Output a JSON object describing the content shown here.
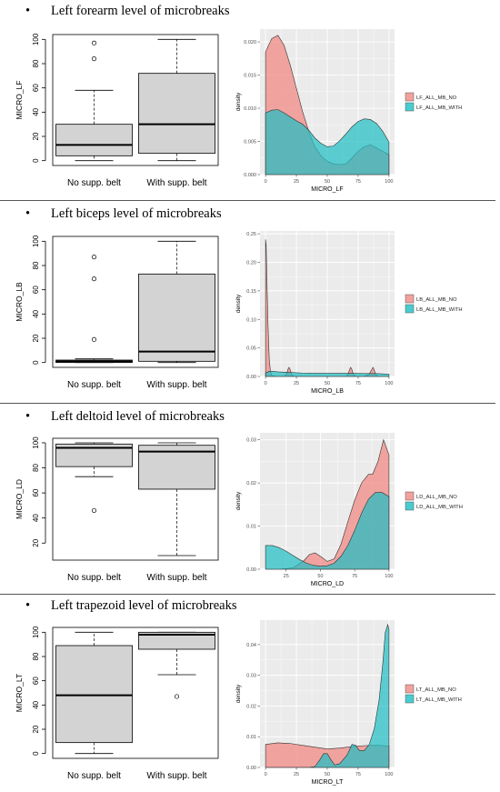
{
  "panels": [
    {
      "heading": "Left forearm level of microbreaks",
      "chart_data": [
        {
          "type": "box",
          "ylabel": "MICRO_LF",
          "categories": [
            "No supp. belt",
            "With supp. belt"
          ],
          "ylim": [
            0,
            100
          ],
          "yticks": [
            0,
            20,
            40,
            60,
            80,
            100
          ],
          "boxes": [
            {
              "min": 0,
              "q1": 4,
              "median": 13,
              "q3": 30,
              "max": 58,
              "outliers": [
                84,
                97
              ]
            },
            {
              "min": 0,
              "q1": 6,
              "median": 30,
              "q3": 72,
              "max": 100,
              "outliers": []
            }
          ]
        },
        {
          "type": "area",
          "xlabel": "MICRO_LF",
          "ylabel": "density",
          "xlim": [
            0,
            100
          ],
          "ylim": [
            0,
            0.0215
          ],
          "xticks": [
            0,
            25,
            50,
            75,
            100
          ],
          "yticks": [
            0.0,
            0.005,
            0.01,
            0.015,
            0.02
          ],
          "legend_title": "",
          "series": [
            {
              "name": "LF_ALL_MB_NO",
              "x": [
                0,
                5,
                10,
                15,
                20,
                25,
                30,
                35,
                40,
                45,
                50,
                55,
                60,
                65,
                70,
                75,
                80,
                85,
                90,
                95,
                100
              ],
              "y": [
                0.0185,
                0.0205,
                0.021,
                0.0195,
                0.0165,
                0.013,
                0.0095,
                0.0065,
                0.0042,
                0.0028,
                0.002,
                0.0016,
                0.0015,
                0.0016,
                0.0025,
                0.0035,
                0.0042,
                0.0045,
                0.004,
                0.0035,
                0.003
              ]
            },
            {
              "name": "LF_ALL_MB_WITH",
              "x": [
                0,
                5,
                10,
                15,
                20,
                25,
                30,
                35,
                40,
                45,
                50,
                55,
                60,
                65,
                70,
                75,
                80,
                85,
                90,
                95,
                100
              ],
              "y": [
                0.0093,
                0.0097,
                0.0098,
                0.0093,
                0.0087,
                0.0081,
                0.0076,
                0.0067,
                0.0055,
                0.0047,
                0.0042,
                0.0043,
                0.0051,
                0.0061,
                0.0072,
                0.008,
                0.0084,
                0.0083,
                0.0077,
                0.0065,
                0.0049
              ]
            }
          ]
        }
      ]
    },
    {
      "heading": "Left biceps level of microbreaks",
      "chart_data": [
        {
          "type": "box",
          "ylabel": "MICRO_LB",
          "categories": [
            "No supp. belt",
            "With supp. belt"
          ],
          "ylim": [
            0,
            100
          ],
          "yticks": [
            0,
            20,
            40,
            60,
            80,
            100
          ],
          "boxes": [
            {
              "min": 0,
              "q1": 0,
              "median": 1,
              "q3": 2,
              "max": 3,
              "outliers": [
                19,
                69,
                87
              ]
            },
            {
              "min": 0,
              "q1": 1,
              "median": 9,
              "q3": 73,
              "max": 100,
              "outliers": []
            }
          ]
        },
        {
          "type": "area",
          "xlabel": "MICRO_LB",
          "ylabel": "density",
          "xlim": [
            0,
            100
          ],
          "ylim": [
            0,
            0.25
          ],
          "xticks": [
            0,
            25,
            50,
            75,
            100
          ],
          "yticks": [
            0.0,
            0.05,
            0.1,
            0.15,
            0.2,
            0.25
          ],
          "legend_title": "",
          "series": [
            {
              "name": "LB_ALL_MB_NO",
              "x": [
                0,
                0.5,
                1,
                2,
                3,
                4,
                5,
                8,
                15,
                17,
                18,
                19,
                20,
                21,
                23,
                30,
                50,
                65,
                67,
                68,
                69,
                70,
                71,
                73,
                80,
                84,
                86,
                87,
                88,
                89,
                91,
                95,
                100
              ],
              "y": [
                0.24,
                0.23,
                0.18,
                0.09,
                0.03,
                0.008,
                0.002,
                0,
                0,
                0.004,
                0.012,
                0.016,
                0.012,
                0.004,
                0,
                0,
                0,
                0,
                0.004,
                0.012,
                0.016,
                0.012,
                0.004,
                0,
                0,
                0.004,
                0.012,
                0.016,
                0.012,
                0.004,
                0,
                0,
                0
              ]
            },
            {
              "name": "LB_ALL_MB_WITH",
              "x": [
                0,
                3,
                6,
                10,
                20,
                30,
                40,
                50,
                60,
                70,
                80,
                90,
                100
              ],
              "y": [
                0.006,
                0.009,
                0.009,
                0.008,
                0.007,
                0.006,
                0.0055,
                0.0055,
                0.0055,
                0.0055,
                0.005,
                0.005,
                0.004
              ]
            }
          ]
        }
      ]
    },
    {
      "heading": "Left deltoid level of microbreaks",
      "chart_data": [
        {
          "type": "box",
          "ylabel": "MICRO_LD",
          "categories": [
            "No supp. belt",
            "With supp. belt"
          ],
          "ylim": [
            10,
            100
          ],
          "yticks": [
            20,
            40,
            60,
            80,
            100
          ],
          "boxes": [
            {
              "min": 73,
              "q1": 81,
              "median": 96,
              "q3": 99,
              "max": 100,
              "outliers": [
                46
              ]
            },
            {
              "min": 10,
              "q1": 63,
              "median": 93,
              "q3": 98,
              "max": 100,
              "outliers": []
            }
          ]
        },
        {
          "type": "area",
          "xlabel": "MICRO_LD",
          "ylabel": "density",
          "xlim": [
            10,
            100
          ],
          "ylim": [
            0,
            0.031
          ],
          "xticks": [
            25,
            50,
            75,
            100
          ],
          "yticks": [
            0.0,
            0.01,
            0.02,
            0.03
          ],
          "legend_title": "",
          "series": [
            {
              "name": "LD_ALL_MB_NO",
              "x": [
                10,
                20,
                30,
                38,
                42,
                46,
                50,
                55,
                60,
                65,
                70,
                75,
                80,
                85,
                88,
                92,
                96,
                100
              ],
              "y": [
                0,
                0,
                0.0003,
                0.002,
                0.0034,
                0.0038,
                0.003,
                0.0018,
                0.0024,
                0.0058,
                0.011,
                0.016,
                0.02,
                0.022,
                0.022,
                0.025,
                0.03,
                0.0265
              ]
            },
            {
              "name": "LD_ALL_MB_WITH",
              "x": [
                10,
                15,
                20,
                25,
                30,
                35,
                40,
                45,
                50,
                55,
                60,
                65,
                70,
                75,
                80,
                85,
                90,
                95,
                100
              ],
              "y": [
                0.0055,
                0.0055,
                0.005,
                0.0042,
                0.0032,
                0.0022,
                0.0014,
                0.0009,
                0.0007,
                0.0008,
                0.0014,
                0.003,
                0.0055,
                0.009,
                0.013,
                0.0162,
                0.0178,
                0.0178,
                0.0168
              ]
            }
          ]
        }
      ]
    },
    {
      "heading": "Left trapezoid level of microbreaks",
      "chart_data": [
        {
          "type": "box",
          "ylabel": "MICRO_LT",
          "categories": [
            "No supp. belt",
            "With supp. belt"
          ],
          "ylim": [
            0,
            100
          ],
          "yticks": [
            0,
            20,
            40,
            60,
            80,
            100
          ],
          "boxes": [
            {
              "min": 0,
              "q1": 9,
              "median": 48,
              "q3": 89,
              "max": 100,
              "outliers": []
            },
            {
              "min": 65,
              "q1": 86,
              "median": 98,
              "q3": 100,
              "max": 100,
              "outliers": [
                47
              ]
            }
          ]
        },
        {
          "type": "area",
          "xlabel": "MICRO_LT",
          "ylabel": "density",
          "xlim": [
            0,
            100
          ],
          "ylim": [
            0,
            0.047
          ],
          "xticks": [
            0,
            25,
            50,
            75,
            100
          ],
          "yticks": [
            0.0,
            0.01,
            0.02,
            0.03,
            0.04
          ],
          "legend_title": "",
          "series": [
            {
              "name": "LT_ALL_MB_NO",
              "x": [
                0,
                10,
                20,
                30,
                40,
                50,
                60,
                70,
                80,
                90,
                100
              ],
              "y": [
                0.0075,
                0.008,
                0.0078,
                0.0072,
                0.0066,
                0.006,
                0.0063,
                0.0068,
                0.0071,
                0.0072,
                0.007
              ]
            },
            {
              "name": "LT_ALL_MB_WITH",
              "x": [
                0,
                35,
                40,
                44,
                47,
                50,
                53,
                56,
                60,
                66,
                70,
                73,
                76,
                80,
                84,
                88,
                92,
                95,
                97,
                99,
                100
              ],
              "y": [
                0,
                0,
                0.0003,
                0.0025,
                0.0045,
                0.0045,
                0.0025,
                0.0008,
                0.0012,
                0.004,
                0.0075,
                0.0072,
                0.0055,
                0.0055,
                0.0075,
                0.0125,
                0.022,
                0.034,
                0.044,
                0.0465,
                0.045
              ]
            }
          ]
        }
      ]
    }
  ],
  "colors": {
    "no_fill": "#f08a84",
    "with_fill": "#1cbfc4",
    "box_fill": "#d3d3d3",
    "panel_bg": "#ebebeb",
    "grid": "#ffffff"
  }
}
